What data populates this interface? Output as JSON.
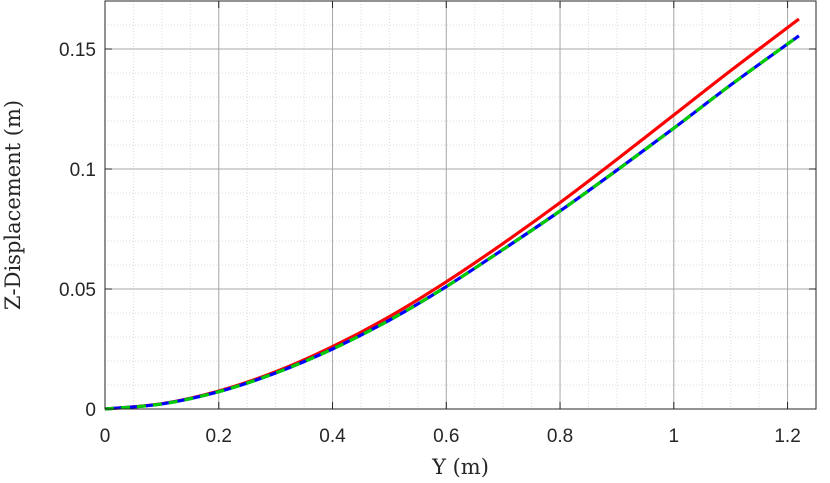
{
  "chart_data": {
    "type": "line",
    "title": "",
    "xlabel": "Y (m)",
    "ylabel": "Z-Displacement (m)",
    "xlim": [
      0,
      1.25
    ],
    "ylim": [
      0,
      0.17
    ],
    "x_ticks": [
      0,
      0.2,
      0.4,
      0.6,
      0.8,
      1,
      1.2
    ],
    "x_tick_labels": [
      "0",
      "0.2",
      "0.4",
      "0.6",
      "0.8",
      "1",
      "1.2"
    ],
    "y_ticks": [
      0,
      0.05,
      0.1,
      0.15
    ],
    "y_tick_labels": [
      "0",
      "0.05",
      "0.1",
      "0.15"
    ],
    "grid": true,
    "minor_grid": true,
    "legend": "none",
    "series": [
      {
        "color": "#ff0000",
        "style": "solid",
        "x": [
          0,
          0.1,
          0.2,
          0.3,
          0.4,
          0.5,
          0.6,
          0.7,
          0.8,
          0.9,
          1.0,
          1.1,
          1.22
        ],
        "y": [
          0,
          0.0022,
          0.0075,
          0.0155,
          0.026,
          0.0385,
          0.053,
          0.069,
          0.086,
          0.104,
          0.1225,
          0.141,
          0.1625
        ]
      },
      {
        "color": "#0000ff",
        "style": "solid",
        "x": [
          0,
          0.1,
          0.2,
          0.3,
          0.4,
          0.5,
          0.6,
          0.7,
          0.8,
          0.9,
          1.0,
          1.1,
          1.22
        ],
        "y": [
          0,
          0.0021,
          0.0072,
          0.015,
          0.025,
          0.037,
          0.051,
          0.0665,
          0.0825,
          0.0995,
          0.117,
          0.135,
          0.1555
        ]
      },
      {
        "color": "#00cc00",
        "style": "dashed",
        "x": [
          0,
          0.1,
          0.2,
          0.3,
          0.4,
          0.5,
          0.6,
          0.7,
          0.8,
          0.9,
          1.0,
          1.1,
          1.22
        ],
        "y": [
          0,
          0.0021,
          0.0072,
          0.015,
          0.025,
          0.037,
          0.051,
          0.0665,
          0.0825,
          0.0995,
          0.117,
          0.135,
          0.1555
        ]
      }
    ]
  }
}
